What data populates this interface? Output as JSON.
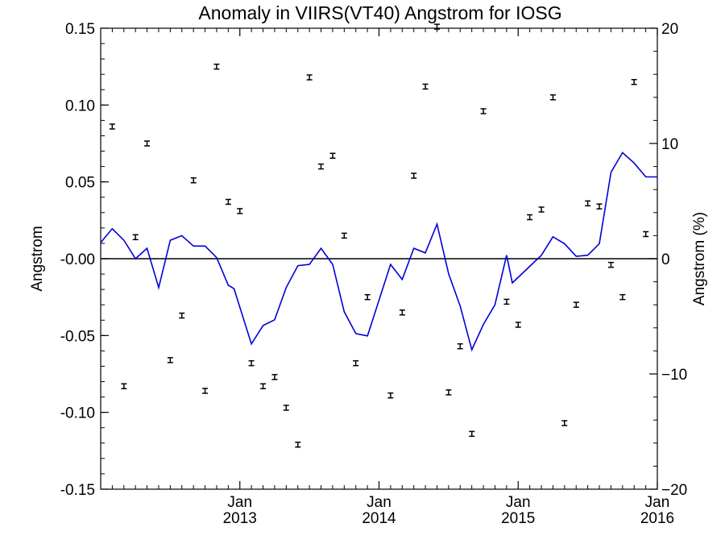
{
  "chart_data": {
    "type": "scatter",
    "title": "Anomaly in VIIRS(VT40) Angstrom for IOSG",
    "ylabel": "Angstrom",
    "y2label": "Angstrom (%)",
    "xlabel": "",
    "ylim": [
      -0.15,
      0.15
    ],
    "y2lim": [
      -20,
      20
    ],
    "xlim": [
      "2012-01",
      "2016-01"
    ],
    "grid": false,
    "colors": {
      "line": "#0000dd",
      "points": "#000000",
      "axes": "#000000"
    },
    "y_ticks": [
      {
        "value": 0.15,
        "label": "0.15"
      },
      {
        "value": 0.1,
        "label": "0.10"
      },
      {
        "value": 0.05,
        "label": "0.05"
      },
      {
        "value": 0.0,
        "label": "-0.00"
      },
      {
        "value": -0.05,
        "label": "-0.05"
      },
      {
        "value": -0.1,
        "label": "-0.10"
      },
      {
        "value": -0.15,
        "label": "-0.15"
      }
    ],
    "y2_ticks": [
      {
        "value": 20,
        "label": "20"
      },
      {
        "value": 10,
        "label": "10"
      },
      {
        "value": 0,
        "label": "0"
      },
      {
        "value": -10,
        "label": "−10"
      },
      {
        "value": -20,
        "label": "−20"
      }
    ],
    "x_ticks": [
      {
        "x": 1,
        "month": "Jan",
        "year": "2013"
      },
      {
        "x": 2,
        "month": "Jan",
        "year": "2014"
      },
      {
        "x": 3,
        "month": "Jan",
        "year": "2015"
      },
      {
        "x": 4,
        "month": "Jan",
        "year": "2016"
      }
    ],
    "series": [
      {
        "type": "line",
        "axis": "right",
        "points": [
          [
            0.0,
            1.4
          ],
          [
            0.083,
            2.6
          ],
          [
            0.167,
            1.6
          ],
          [
            0.25,
            0.0
          ],
          [
            0.333,
            0.9
          ],
          [
            0.417,
            -2.5
          ],
          [
            0.5,
            1.6
          ],
          [
            0.583,
            2.0
          ],
          [
            0.667,
            1.1
          ],
          [
            0.75,
            1.1
          ],
          [
            0.833,
            0.1
          ],
          [
            0.917,
            -2.3
          ],
          [
            0.958,
            -2.6
          ],
          [
            1.083,
            -7.4
          ],
          [
            1.167,
            -5.8
          ],
          [
            1.25,
            -5.3
          ],
          [
            1.333,
            -2.5
          ],
          [
            1.417,
            -0.6
          ],
          [
            1.5,
            -0.5
          ],
          [
            1.583,
            0.9
          ],
          [
            1.667,
            -0.5
          ],
          [
            1.75,
            -4.6
          ],
          [
            1.833,
            -6.5
          ],
          [
            1.917,
            -6.7
          ],
          [
            2.083,
            -0.5
          ],
          [
            2.167,
            -1.8
          ],
          [
            2.25,
            0.9
          ],
          [
            2.333,
            0.5
          ],
          [
            2.417,
            3.0
          ],
          [
            2.5,
            -1.3
          ],
          [
            2.583,
            -4.1
          ],
          [
            2.667,
            -7.9
          ],
          [
            2.75,
            -5.7
          ],
          [
            2.833,
            -4.0
          ],
          [
            2.917,
            0.3
          ],
          [
            2.958,
            -2.1
          ],
          [
            3.167,
            0.3
          ],
          [
            3.25,
            1.9
          ],
          [
            3.333,
            1.3
          ],
          [
            3.417,
            0.2
          ],
          [
            3.5,
            0.3
          ],
          [
            3.583,
            1.3
          ],
          [
            3.667,
            7.5
          ],
          [
            3.75,
            9.2
          ],
          [
            3.833,
            8.3
          ],
          [
            3.917,
            7.1
          ],
          [
            4.0,
            7.1
          ]
        ]
      },
      {
        "type": "errorbar",
        "axis": "left",
        "points": [
          [
            0.083,
            0.086
          ],
          [
            0.167,
            -0.083
          ],
          [
            0.25,
            0.014
          ],
          [
            0.333,
            0.075
          ],
          [
            0.5,
            -0.066
          ],
          [
            0.583,
            -0.037
          ],
          [
            0.667,
            0.051
          ],
          [
            0.75,
            -0.086
          ],
          [
            0.833,
            0.125
          ],
          [
            0.917,
            0.037
          ],
          [
            1.0,
            0.031
          ],
          [
            1.083,
            -0.068
          ],
          [
            1.167,
            -0.083
          ],
          [
            1.25,
            -0.077
          ],
          [
            1.333,
            -0.097
          ],
          [
            1.417,
            -0.121
          ],
          [
            1.5,
            0.118
          ],
          [
            1.583,
            0.06
          ],
          [
            1.667,
            0.067
          ],
          [
            1.75,
            0.015
          ],
          [
            1.833,
            -0.068
          ],
          [
            1.917,
            -0.025
          ],
          [
            2.083,
            -0.089
          ],
          [
            2.167,
            -0.035
          ],
          [
            2.25,
            0.054
          ],
          [
            2.333,
            0.112
          ],
          [
            2.417,
            0.151
          ],
          [
            2.5,
            -0.087
          ],
          [
            2.583,
            -0.057
          ],
          [
            2.667,
            -0.114
          ],
          [
            2.75,
            0.096
          ],
          [
            2.917,
            -0.028
          ],
          [
            3.0,
            -0.043
          ],
          [
            3.083,
            0.027
          ],
          [
            3.167,
            0.032
          ],
          [
            3.25,
            0.105
          ],
          [
            3.333,
            -0.107
          ],
          [
            3.417,
            -0.03
          ],
          [
            3.5,
            0.036
          ],
          [
            3.583,
            0.034
          ],
          [
            3.667,
            -0.004
          ],
          [
            3.75,
            -0.025
          ],
          [
            3.833,
            0.115
          ],
          [
            3.917,
            0.016
          ]
        ]
      }
    ]
  }
}
